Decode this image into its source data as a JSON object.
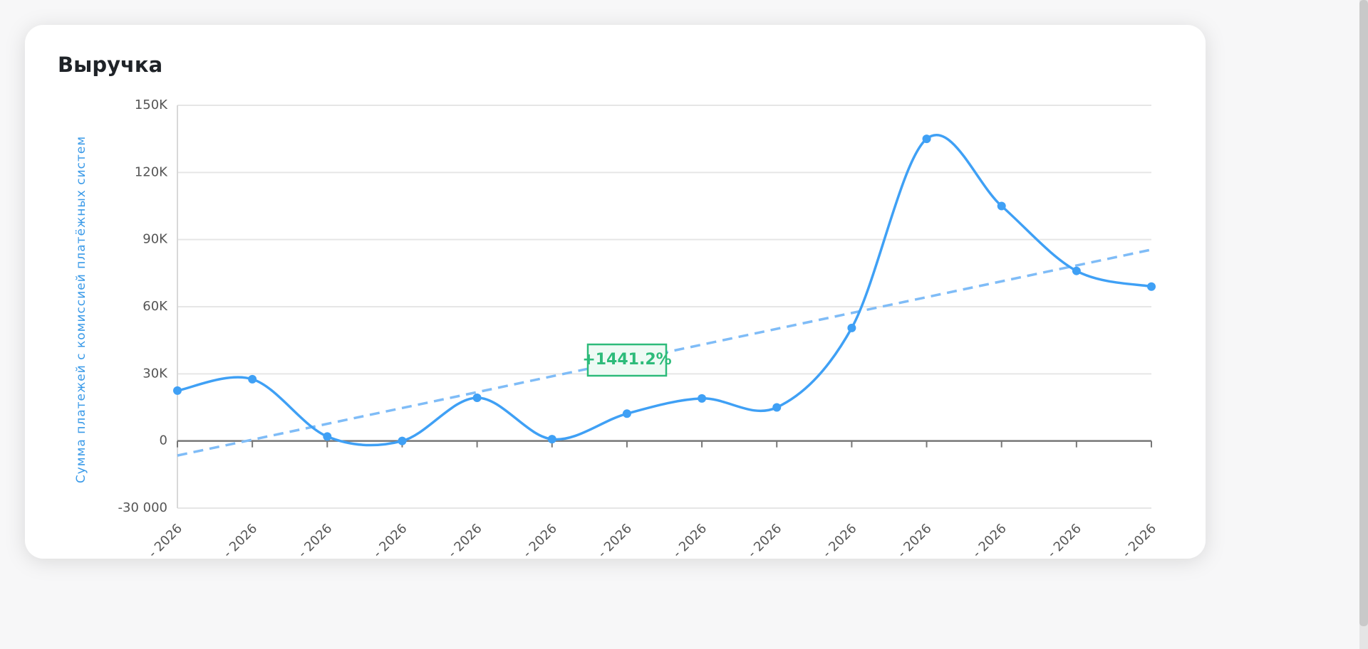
{
  "chart_data": {
    "type": "line",
    "title": "Выручка",
    "y_label": "Сумма платежей с комиссией платёжных систем",
    "categories": [
      "- 2026",
      "- 2026",
      "- 2026",
      "- 2026",
      "- 2026",
      "- 2026",
      "- 2026",
      "- 2026",
      "- 2026",
      "- 2026",
      "- 2026",
      "- 2026",
      "- 2026",
      "- 2026"
    ],
    "series": [
      {
        "color": "#3fa0f5",
        "values": [
          22500,
          27600,
          2000,
          0,
          19300,
          800,
          12200,
          19000,
          15000,
          50500,
          135000,
          105000,
          76000,
          69000
        ]
      }
    ],
    "trendline": {
      "color": "#7fbcf7",
      "start": -6500,
      "end": 85500
    },
    "annotation": "+1441.2%",
    "ylim": [
      -30000,
      150000
    ],
    "yticks": [
      {
        "value": -30000,
        "label": "-30 000"
      },
      0,
      {
        "value": 30000,
        "label": "30K"
      },
      {
        "value": 60000,
        "label": "60K"
      },
      {
        "value": 90000,
        "label": "90K"
      },
      {
        "value": 120000,
        "label": "120K"
      },
      {
        "value": 150000,
        "label": "150K"
      }
    ],
    "grid": true
  }
}
